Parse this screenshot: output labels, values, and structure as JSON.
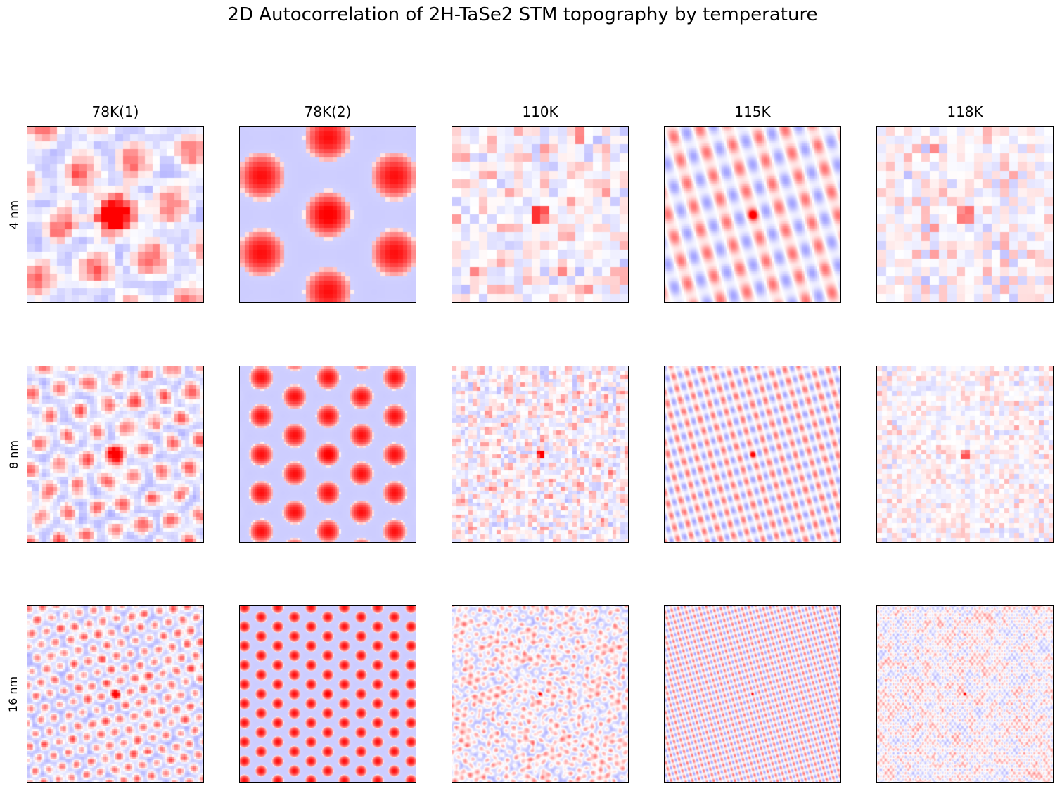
{
  "chart_data": {
    "type": "heatmap",
    "title": "2D Autocorrelation of 2H-TaSe2 STM topography by temperature",
    "columns": [
      "78K(1)",
      "78K(2)",
      "110K",
      "115K",
      "118K"
    ],
    "rows": [
      "4 nm",
      "8 nm",
      "16 nm"
    ],
    "colormap": {
      "negative": "#0000ff",
      "zero": "#ffffff",
      "positive": "#ff0000"
    },
    "grid": false
  }
}
